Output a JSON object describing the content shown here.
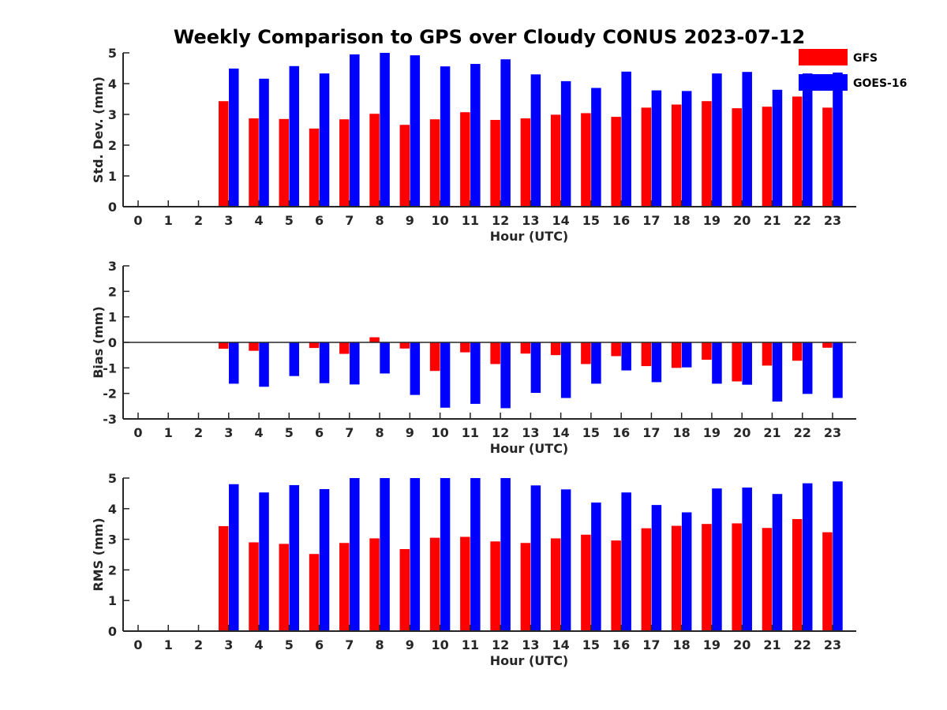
{
  "title": "Weekly Comparison to GPS over Cloudy CONUS 2023-07-12",
  "colors": {
    "GFS": "#ff0000",
    "GOES-16": "#0000ff"
  },
  "legend": {
    "items": [
      "GFS",
      "GOES-16"
    ],
    "placement": "top-right"
  },
  "chart_data": [
    {
      "type": "bar",
      "title": "Weekly Comparison to GPS over Cloudy CONUS 2023-07-12",
      "xlabel": "Hour (UTC)",
      "ylabel": "Std. Dev. (mm)",
      "ylim": [
        0,
        5
      ],
      "yticks": [
        0,
        1,
        2,
        3,
        4,
        5
      ],
      "categories": [
        "0",
        "1",
        "2",
        "3",
        "4",
        "5",
        "6",
        "7",
        "8",
        "9",
        "10",
        "11",
        "12",
        "13",
        "14",
        "15",
        "16",
        "17",
        "18",
        "19",
        "20",
        "21",
        "22",
        "23"
      ],
      "series": [
        {
          "name": "GFS",
          "values": [
            null,
            null,
            null,
            3.43,
            2.87,
            2.85,
            2.54,
            2.84,
            3.02,
            2.66,
            2.84,
            3.07,
            2.82,
            2.87,
            2.99,
            3.04,
            2.92,
            3.22,
            3.32,
            3.43,
            3.2,
            3.25,
            3.58,
            3.22
          ]
        },
        {
          "name": "GOES-16",
          "values": [
            null,
            null,
            null,
            4.49,
            4.16,
            4.57,
            4.33,
            4.95,
            5.0,
            4.92,
            4.56,
            4.64,
            4.79,
            4.3,
            4.08,
            3.86,
            4.39,
            3.78,
            3.76,
            4.33,
            4.38,
            3.8,
            4.33,
            4.36
          ]
        }
      ],
      "grid": false
    },
    {
      "type": "bar",
      "xlabel": "Hour (UTC)",
      "ylabel": "Bias (mm)",
      "ylim": [
        -3,
        3
      ],
      "yticks": [
        -3,
        -2,
        -1,
        0,
        1,
        2,
        3
      ],
      "categories": [
        "0",
        "1",
        "2",
        "3",
        "4",
        "5",
        "6",
        "7",
        "8",
        "9",
        "10",
        "11",
        "12",
        "13",
        "14",
        "15",
        "16",
        "17",
        "18",
        "19",
        "20",
        "21",
        "22",
        "23"
      ],
      "series": [
        {
          "name": "GFS",
          "values": [
            null,
            null,
            null,
            -0.25,
            -0.33,
            0.0,
            -0.22,
            -0.45,
            0.2,
            -0.24,
            -1.12,
            -0.39,
            -0.85,
            -0.44,
            -0.5,
            -0.85,
            -0.54,
            -0.93,
            -1.0,
            -0.68,
            -1.53,
            -0.91,
            -0.72,
            -0.21
          ]
        },
        {
          "name": "GOES-16",
          "values": [
            null,
            null,
            null,
            -1.62,
            -1.74,
            -1.32,
            -1.6,
            -1.65,
            -1.22,
            -2.06,
            -2.56,
            -2.41,
            -2.58,
            -1.98,
            -2.18,
            -1.62,
            -1.1,
            -1.56,
            -0.98,
            -1.62,
            -1.66,
            -2.32,
            -2.02,
            -2.18
          ]
        }
      ],
      "zero_line": true,
      "grid": false
    },
    {
      "type": "bar",
      "xlabel": "Hour (UTC)",
      "ylabel": "RMS (mm)",
      "ylim": [
        0,
        5
      ],
      "yticks": [
        0,
        1,
        2,
        3,
        4,
        5
      ],
      "categories": [
        "0",
        "1",
        "2",
        "3",
        "4",
        "5",
        "6",
        "7",
        "8",
        "9",
        "10",
        "11",
        "12",
        "13",
        "14",
        "15",
        "16",
        "17",
        "18",
        "19",
        "20",
        "21",
        "22",
        "23"
      ],
      "series": [
        {
          "name": "GFS",
          "values": [
            null,
            null,
            null,
            3.43,
            2.9,
            2.85,
            2.52,
            2.88,
            3.03,
            2.68,
            3.05,
            3.08,
            2.93,
            2.88,
            3.03,
            3.15,
            2.96,
            3.36,
            3.44,
            3.5,
            3.52,
            3.37,
            3.66,
            3.23
          ]
        },
        {
          "name": "GOES-16",
          "values": [
            null,
            null,
            null,
            4.8,
            4.53,
            4.77,
            4.64,
            5.0,
            5.0,
            5.0,
            5.0,
            5.0,
            5.0,
            4.76,
            4.63,
            4.2,
            4.53,
            4.12,
            3.88,
            4.66,
            4.69,
            4.48,
            4.83,
            4.89
          ]
        }
      ],
      "grid": false
    }
  ]
}
